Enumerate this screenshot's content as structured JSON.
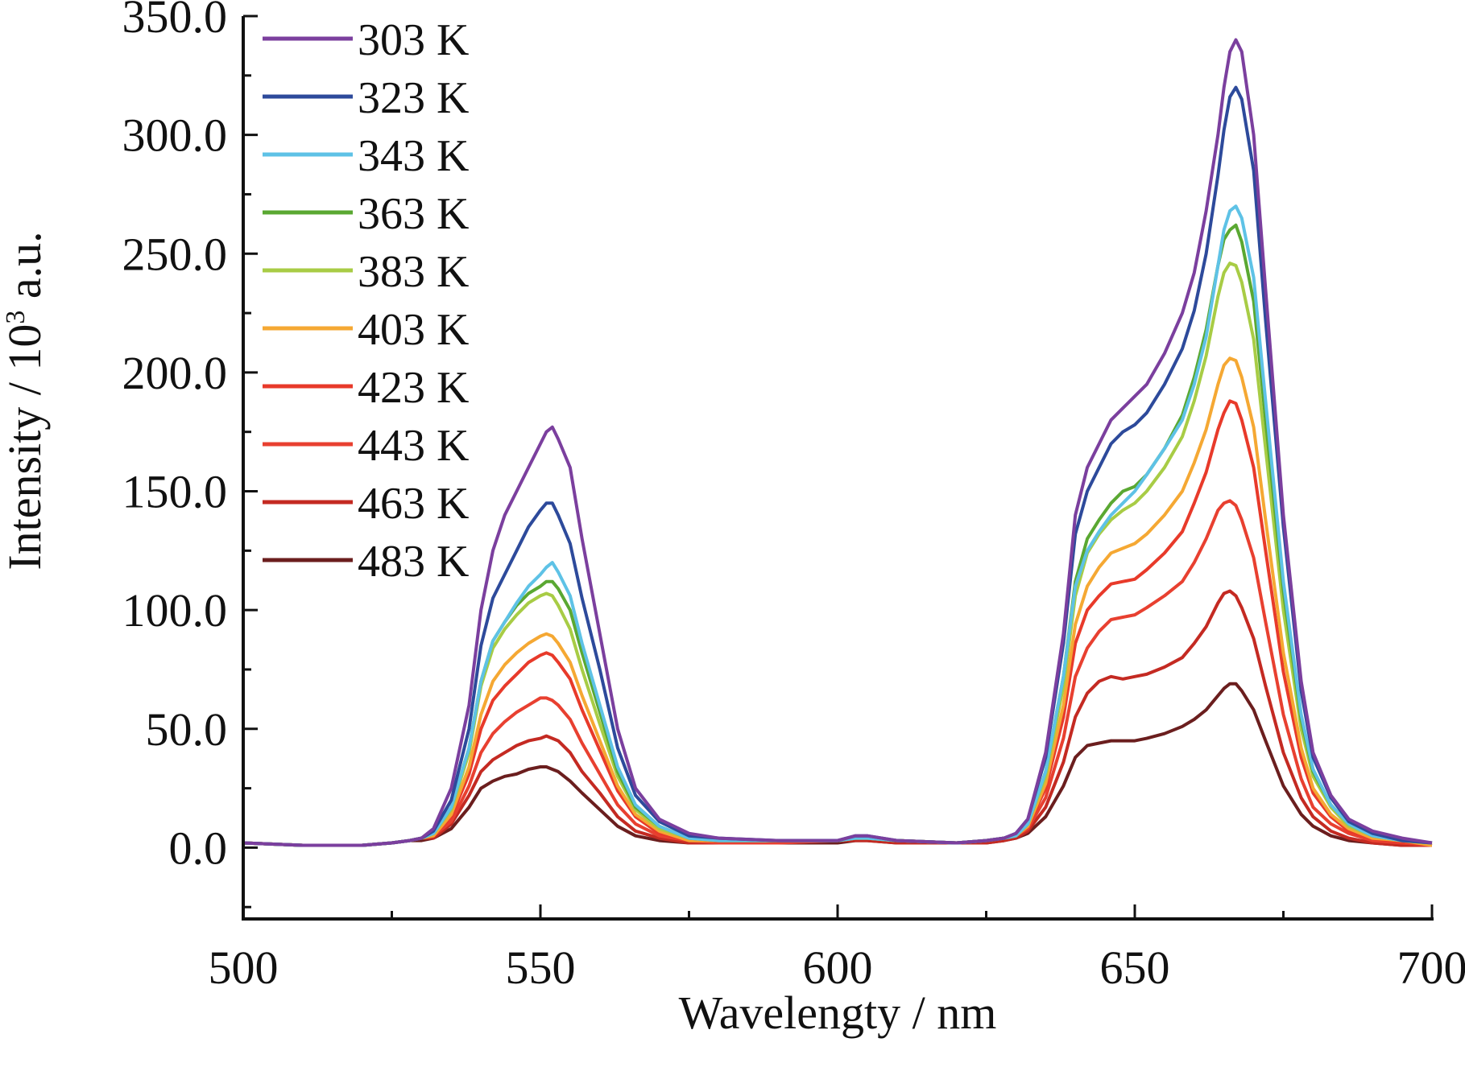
{
  "chart_data": {
    "type": "line",
    "xlabel": "Wavelengty / nm",
    "ylabel_main": "Intensity / 10",
    "ylabel_sup": "3",
    "ylabel_tail": " a.u.",
    "xlim": [
      500,
      700
    ],
    "ylim": [
      -30,
      350
    ],
    "x_ticks": [
      500,
      550,
      600,
      650,
      700
    ],
    "x_tick_labels": [
      "500",
      "550",
      "600",
      "650",
      "700"
    ],
    "y_ticks": [
      0,
      50,
      100,
      150,
      200,
      250,
      300,
      350
    ],
    "y_tick_labels": [
      "0.0",
      "50.0",
      "100.0",
      "150.0",
      "200.0",
      "250.0",
      "300.0",
      "350.0"
    ],
    "grid": false,
    "legend_position": "top-left",
    "x": [
      500,
      510,
      520,
      525,
      528,
      530,
      532,
      535,
      538,
      540,
      542,
      544,
      546,
      548,
      550,
      551,
      552,
      553,
      555,
      557,
      560,
      563,
      566,
      570,
      575,
      580,
      590,
      600,
      603,
      605,
      610,
      620,
      625,
      628,
      630,
      632,
      635,
      638,
      640,
      642,
      644,
      646,
      648,
      650,
      652,
      655,
      658,
      660,
      662,
      664,
      665,
      666,
      667,
      668,
      670,
      672,
      675,
      678,
      680,
      683,
      686,
      690,
      695,
      700
    ],
    "series": [
      {
        "name": "303 K",
        "color": "#7b3f9e",
        "values": [
          2,
          1,
          1,
          2,
          3,
          4,
          8,
          25,
          60,
          100,
          125,
          140,
          150,
          160,
          170,
          175,
          177,
          172,
          160,
          130,
          90,
          50,
          25,
          12,
          6,
          4,
          3,
          3,
          5,
          5,
          3,
          2,
          3,
          4,
          6,
          12,
          40,
          90,
          140,
          160,
          170,
          180,
          185,
          190,
          195,
          208,
          225,
          242,
          268,
          300,
          320,
          335,
          340,
          335,
          300,
          235,
          140,
          70,
          40,
          22,
          12,
          7,
          4,
          2
        ]
      },
      {
        "name": "323 K",
        "color": "#2d4a9b",
        "values": [
          2,
          1,
          1,
          2,
          3,
          4,
          7,
          20,
          50,
          85,
          105,
          115,
          125,
          135,
          142,
          145,
          145,
          140,
          128,
          105,
          75,
          42,
          22,
          11,
          5,
          4,
          3,
          3,
          5,
          5,
          3,
          2,
          3,
          4,
          6,
          12,
          38,
          86,
          132,
          150,
          160,
          170,
          175,
          178,
          183,
          195,
          210,
          226,
          250,
          283,
          302,
          316,
          320,
          315,
          285,
          222,
          135,
          66,
          38,
          21,
          11,
          6,
          3,
          2
        ]
      },
      {
        "name": "343 K",
        "color": "#5ec2e6",
        "values": [
          2,
          1,
          1,
          2,
          3,
          4,
          6,
          17,
          42,
          70,
          87,
          95,
          103,
          110,
          115,
          118,
          120,
          116,
          106,
          86,
          60,
          34,
          18,
          9,
          4,
          3,
          3,
          3,
          4,
          4,
          3,
          2,
          3,
          4,
          5,
          10,
          32,
          72,
          110,
          125,
          133,
          140,
          145,
          150,
          157,
          168,
          180,
          195,
          215,
          245,
          260,
          268,
          270,
          265,
          240,
          188,
          112,
          56,
          33,
          18,
          10,
          5,
          3,
          2
        ]
      },
      {
        "name": "363 K",
        "color": "#5aa832",
        "values": [
          2,
          1,
          1,
          2,
          3,
          4,
          6,
          17,
          42,
          70,
          87,
          95,
          102,
          107,
          110,
          112,
          112,
          109,
          100,
          82,
          57,
          32,
          17,
          9,
          4,
          3,
          3,
          3,
          4,
          4,
          3,
          2,
          3,
          4,
          5,
          10,
          32,
          72,
          112,
          130,
          138,
          145,
          150,
          152,
          157,
          168,
          182,
          198,
          218,
          245,
          256,
          260,
          262,
          255,
          230,
          180,
          108,
          54,
          32,
          18,
          10,
          5,
          3,
          2
        ]
      },
      {
        "name": "383 K",
        "color": "#a8cc45",
        "values": [
          2,
          1,
          1,
          2,
          3,
          4,
          6,
          16,
          40,
          68,
          84,
          92,
          98,
          103,
          106,
          107,
          106,
          102,
          92,
          75,
          52,
          30,
          16,
          8,
          4,
          3,
          3,
          3,
          4,
          4,
          3,
          2,
          3,
          4,
          5,
          10,
          30,
          68,
          106,
          124,
          132,
          138,
          142,
          145,
          150,
          160,
          173,
          188,
          207,
          232,
          242,
          246,
          245,
          238,
          214,
          168,
          100,
          50,
          30,
          17,
          9,
          5,
          3,
          2
        ]
      },
      {
        "name": "403 K",
        "color": "#f5a833",
        "values": [
          2,
          1,
          1,
          2,
          3,
          4,
          5,
          14,
          34,
          56,
          70,
          77,
          82,
          86,
          89,
          90,
          89,
          86,
          78,
          64,
          45,
          26,
          14,
          7,
          3,
          3,
          3,
          3,
          4,
          4,
          3,
          2,
          3,
          4,
          5,
          9,
          27,
          60,
          94,
          110,
          118,
          124,
          126,
          128,
          132,
          140,
          150,
          162,
          176,
          195,
          203,
          206,
          205,
          198,
          177,
          138,
          82,
          42,
          25,
          14,
          8,
          4,
          3,
          1
        ]
      },
      {
        "name": "423 K",
        "color": "#e83a2a",
        "values": [
          2,
          1,
          1,
          2,
          3,
          4,
          5,
          13,
          31,
          50,
          62,
          68,
          73,
          78,
          81,
          82,
          81,
          78,
          71,
          58,
          41,
          24,
          13,
          6,
          3,
          3,
          3,
          3,
          4,
          4,
          3,
          2,
          3,
          4,
          5,
          9,
          25,
          55,
          86,
          100,
          106,
          111,
          112,
          113,
          117,
          124,
          133,
          145,
          158,
          176,
          183,
          188,
          187,
          180,
          160,
          125,
          74,
          38,
          23,
          13,
          7,
          4,
          2,
          1
        ]
      },
      {
        "name": "443 K",
        "color": "#e84030",
        "values": [
          2,
          1,
          1,
          2,
          3,
          4,
          5,
          11,
          26,
          40,
          48,
          53,
          57,
          60,
          63,
          63,
          62,
          60,
          54,
          44,
          31,
          18,
          10,
          5,
          3,
          2,
          2,
          3,
          4,
          4,
          3,
          2,
          3,
          4,
          5,
          8,
          21,
          46,
          72,
          84,
          91,
          96,
          97,
          98,
          101,
          106,
          112,
          120,
          130,
          142,
          145,
          146,
          144,
          138,
          122,
          95,
          56,
          29,
          17,
          10,
          6,
          3,
          2,
          1
        ]
      },
      {
        "name": "463 K",
        "color": "#c42a22",
        "values": [
          2,
          1,
          1,
          2,
          3,
          4,
          4,
          10,
          22,
          32,
          37,
          40,
          43,
          45,
          46,
          47,
          46,
          45,
          40,
          32,
          23,
          13,
          7,
          4,
          2,
          2,
          2,
          3,
          3,
          3,
          2,
          2,
          2,
          3,
          4,
          7,
          17,
          36,
          55,
          65,
          70,
          72,
          71,
          72,
          73,
          76,
          80,
          86,
          93,
          103,
          107,
          108,
          106,
          101,
          88,
          68,
          40,
          21,
          13,
          7,
          4,
          2,
          1,
          1
        ]
      },
      {
        "name": "483 K",
        "color": "#6b1e1e",
        "values": [
          2,
          1,
          1,
          2,
          3,
          3,
          4,
          8,
          17,
          25,
          28,
          30,
          31,
          33,
          34,
          34,
          33,
          32,
          28,
          23,
          16,
          9,
          5,
          3,
          2,
          2,
          2,
          2,
          3,
          3,
          2,
          2,
          2,
          3,
          4,
          6,
          13,
          26,
          38,
          43,
          44,
          45,
          45,
          45,
          46,
          48,
          51,
          54,
          58,
          64,
          67,
          69,
          69,
          66,
          58,
          45,
          26,
          14,
          9,
          5,
          3,
          2,
          1,
          1
        ]
      }
    ]
  }
}
